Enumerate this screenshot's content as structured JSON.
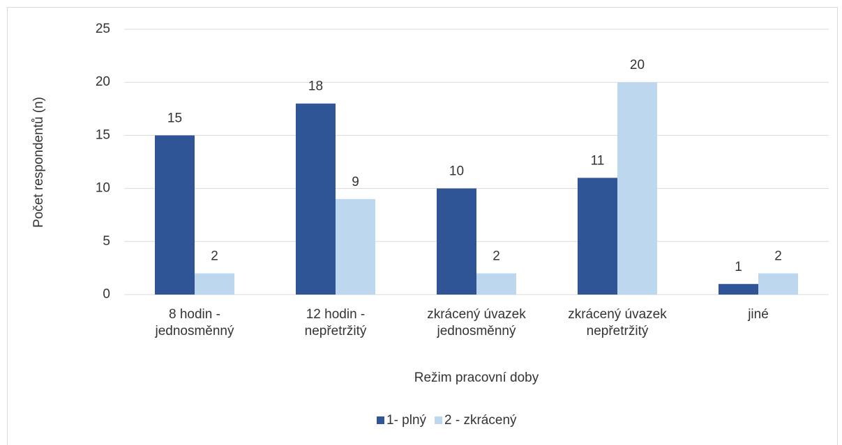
{
  "chart_data": {
    "type": "bar",
    "categories": [
      [
        "8 hodin -",
        "jednosměnný"
      ],
      [
        "12 hodin -",
        "nepřetržitý"
      ],
      [
        "zkrácený úvazek",
        "jednosměnný"
      ],
      [
        "zkrácený úvazek",
        "nepřetržitý"
      ],
      [
        "jiné"
      ]
    ],
    "series": [
      {
        "name": "1- plný",
        "color": "#2f5597",
        "values": [
          15,
          18,
          10,
          11,
          1
        ]
      },
      {
        "name": "2 - zkrácený",
        "color": "#bdd7ee",
        "values": [
          2,
          9,
          2,
          20,
          2
        ]
      }
    ],
    "xlabel": "Režim pracovní doby",
    "ylabel": "Počet respondentů (n)",
    "ylim": [
      0,
      25
    ],
    "yticks": [
      0,
      5,
      10,
      15,
      20,
      25
    ],
    "grid": true,
    "legend": "bottom"
  }
}
